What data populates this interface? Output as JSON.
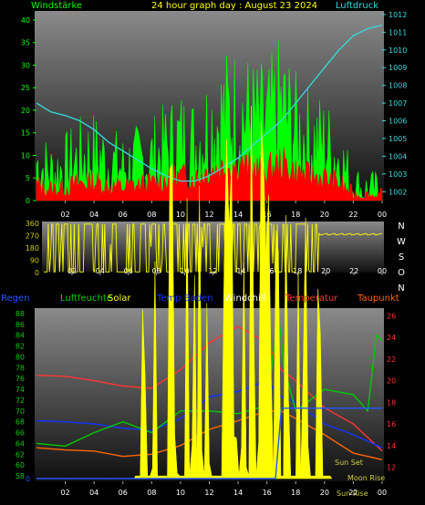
{
  "colors": {
    "windstaerke": "#00ff00",
    "gust": "#ff0000",
    "luftdruck": "#33dddd",
    "direction": "#ffff00",
    "regen": "#2255ff",
    "luftfeuchte": "#00cc00",
    "solar": "#ffff00",
    "temp_boden": "#1133ff",
    "windchill": "#ffffff",
    "temperatur": "#ff3333",
    "taupunkt": "#ff6600",
    "yellow_axis": "#cccc00",
    "sun_label": "#cccc44"
  },
  "chart_data": [
    {
      "type": "line",
      "title": "24 hour graph day : August 23 2024",
      "x_ticks": [
        "02",
        "04",
        "06",
        "08",
        "10",
        "12",
        "14",
        "16",
        "18",
        "20",
        "22",
        "00"
      ],
      "left_axis": {
        "label": "Windstärke",
        "ticks": [
          0,
          5,
          10,
          15,
          20,
          25,
          30,
          35,
          40
        ],
        "ylim": [
          0,
          42
        ]
      },
      "right_axis": {
        "label": "Luftdruck",
        "ticks": [
          1002,
          1003,
          1004,
          1005,
          1006,
          1007,
          1008,
          1009,
          1010,
          1011,
          1012
        ],
        "ylim": [
          1001.5,
          1012.2
        ]
      },
      "series": [
        {
          "name": "Windstärke",
          "axis": "left",
          "x": [
            0,
            1,
            2,
            3,
            4,
            5,
            6,
            7,
            8,
            9,
            10,
            11,
            12,
            13,
            14,
            15,
            16,
            17,
            18,
            19,
            20,
            21,
            22,
            23,
            24
          ],
          "values": [
            8,
            6,
            7,
            9,
            10,
            8,
            7,
            8,
            9,
            11,
            13,
            12,
            16,
            18,
            19,
            17,
            16,
            20,
            15,
            13,
            12,
            9,
            3,
            2,
            2
          ]
        },
        {
          "name": "Luftdruck",
          "axis": "right",
          "x": [
            0,
            1,
            2,
            3,
            4,
            5,
            6,
            7,
            8,
            9,
            10,
            11,
            12,
            13,
            14,
            15,
            16,
            17,
            18,
            19,
            20,
            21,
            22,
            23,
            24
          ],
          "values": [
            1007.0,
            1006.5,
            1006.3,
            1006.0,
            1005.5,
            1004.8,
            1004.3,
            1003.8,
            1003.3,
            1002.9,
            1002.6,
            1002.6,
            1002.9,
            1003.4,
            1003.9,
            1004.6,
            1005.3,
            1006.0,
            1007.0,
            1008.0,
            1009.0,
            1010.0,
            1010.8,
            1011.2,
            1011.4
          ]
        }
      ]
    },
    {
      "type": "line",
      "title": "",
      "x_ticks": [
        "02",
        "04",
        "06",
        "08",
        "10",
        "12",
        "14",
        "16",
        "18",
        "20",
        "22",
        "00"
      ],
      "left_axis": {
        "label": "",
        "ticks": [
          0,
          90,
          180,
          270,
          360
        ],
        "ylim": [
          0,
          360
        ]
      },
      "right_labels": [
        "N",
        "W",
        "S",
        "O",
        "N"
      ],
      "series": [
        {
          "name": "Windrichtung",
          "axis": "left",
          "x": [
            0,
            2,
            4,
            6,
            8,
            10,
            12,
            14,
            16,
            18,
            19,
            20,
            20.6,
            21,
            22,
            23,
            24
          ],
          "values": [
            180,
            200,
            180,
            190,
            210,
            220,
            230,
            240,
            250,
            265,
            270,
            270,
            270,
            285,
            285,
            280,
            280
          ]
        }
      ]
    },
    {
      "type": "line",
      "title": "",
      "x_ticks": [
        "02",
        "04",
        "06",
        "08",
        "10",
        "12",
        "14",
        "16",
        "18",
        "20",
        "22",
        "00"
      ],
      "left_axis": {
        "label": "Regen",
        "ticks": [
          58,
          60,
          62,
          64,
          66,
          68,
          70,
          72,
          74,
          76,
          78,
          80,
          82,
          84,
          86,
          88
        ],
        "ylim": [
          57,
          89
        ]
      },
      "right_axis": {
        "label": "Temperatur",
        "ticks": [
          12,
          14,
          16,
          18,
          20,
          22,
          24,
          26
        ],
        "ylim": [
          10.7,
          26.7
        ]
      },
      "legend": [
        "Regen",
        "Luftfeuchte",
        "Solar",
        "Temp Boden",
        "Windchill",
        "Temperatur",
        "Taupunkt"
      ],
      "annotations": [
        "Sun Set",
        "Moon Rise",
        "Sun Rise"
      ],
      "series": [
        {
          "name": "Temperatur",
          "axis": "right",
          "x": [
            0,
            2,
            4,
            6,
            8,
            10,
            12,
            14,
            16,
            17,
            18,
            20,
            22,
            24
          ],
          "values": [
            20.5,
            20.4,
            20.0,
            19.5,
            19.3,
            21.0,
            23.5,
            25.0,
            23.5,
            21.0,
            20.0,
            17.5,
            16.0,
            13.5
          ]
        },
        {
          "name": "Temp Boden",
          "axis": "right",
          "x": [
            0,
            2,
            4,
            6,
            8,
            10,
            12,
            14,
            16,
            17,
            18,
            20,
            22,
            24
          ],
          "values": [
            16.3,
            16.2,
            16.0,
            15.6,
            15.4,
            16.5,
            18.5,
            19.0,
            20.0,
            18.5,
            18.0,
            16.0,
            15.0,
            13.8
          ]
        },
        {
          "name": "Taupunkt",
          "axis": "right",
          "x": [
            0,
            2,
            4,
            6,
            8,
            10,
            12,
            14,
            16,
            17,
            18,
            20,
            22,
            24
          ],
          "values": [
            13.8,
            13.6,
            13.5,
            13.0,
            13.2,
            14.0,
            15.5,
            16.3,
            17.2,
            17.2,
            16.5,
            15.0,
            13.3,
            12.7
          ]
        },
        {
          "name": "Luftfeuchte",
          "axis": "left",
          "x": [
            0,
            2,
            4,
            6,
            8,
            10,
            12,
            14,
            16,
            16.8,
            17.2,
            18,
            20,
            22,
            23,
            23.6,
            24
          ],
          "values": [
            64,
            63.5,
            66,
            68,
            66,
            70,
            70,
            69.5,
            71,
            88,
            78,
            70,
            74,
            73,
            70,
            84,
            83
          ]
        },
        {
          "name": "Solar",
          "axis": "left",
          "x": [
            6.8,
            8,
            9,
            10,
            11,
            12,
            12.5,
            13,
            14,
            15,
            16,
            17,
            18,
            19,
            20,
            20.5
          ],
          "values": [
            58,
            58.5,
            60,
            62,
            64,
            74,
            62,
            68,
            62,
            68,
            60,
            62,
            61,
            60.5,
            59,
            58
          ]
        },
        {
          "name": "Regen",
          "axis": "left",
          "x": [
            0,
            16,
            16.6,
            17,
            24
          ],
          "values": [
            57.5,
            57.5,
            57.5,
            70.5,
            70.5
          ]
        }
      ]
    }
  ]
}
